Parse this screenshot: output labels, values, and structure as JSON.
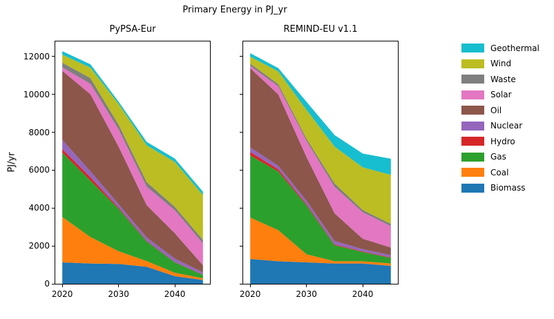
{
  "title": "Primary Energy in PJ_yr",
  "ylabel": "PJ/yr",
  "legend": {
    "position": "right",
    "items": [
      {
        "label": "Geothermal",
        "color": "#17becf"
      },
      {
        "label": "Wind",
        "color": "#bcbd22"
      },
      {
        "label": "Waste",
        "color": "#7f7f7f"
      },
      {
        "label": "Solar",
        "color": "#e377c2"
      },
      {
        "label": "Oil",
        "color": "#8c564b"
      },
      {
        "label": "Nuclear",
        "color": "#9467bd"
      },
      {
        "label": "Hydro",
        "color": "#d62728"
      },
      {
        "label": "Gas",
        "color": "#2ca02c"
      },
      {
        "label": "Coal",
        "color": "#ff7f0e"
      },
      {
        "label": "Biomass",
        "color": "#1f77b4"
      }
    ]
  },
  "chart_data": [
    {
      "type": "area",
      "title": "PyPSA-Eur",
      "stacked": true,
      "x": [
        2020,
        2025,
        2030,
        2035,
        2040,
        2045
      ],
      "xlim": [
        2018.75,
        2046.25
      ],
      "ylim": [
        0,
        12802
      ],
      "xticks": [
        2020,
        2030,
        2040
      ],
      "yticks": [
        0,
        2000,
        4000,
        6000,
        8000,
        10000,
        12000
      ],
      "show_ytick_labels": true,
      "grid": false,
      "series": [
        {
          "name": "Biomass",
          "color": "#1f77b4",
          "values": [
            1130,
            1070,
            1050,
            900,
            400,
            200
          ]
        },
        {
          "name": "Coal",
          "color": "#ff7f0e",
          "values": [
            2400,
            1400,
            670,
            300,
            180,
            90
          ]
        },
        {
          "name": "Gas",
          "color": "#2ca02c",
          "values": [
            3400,
            2980,
            2250,
            1040,
            550,
            180
          ]
        },
        {
          "name": "Hydro",
          "color": "#d62728",
          "values": [
            180,
            180,
            60,
            30,
            20,
            15
          ]
        },
        {
          "name": "Nuclear",
          "color": "#9467bd",
          "values": [
            490,
            310,
            180,
            180,
            180,
            120
          ]
        },
        {
          "name": "Oil",
          "color": "#8c564b",
          "values": [
            3650,
            4070,
            3040,
            1700,
            1340,
            370
          ]
        },
        {
          "name": "Solar",
          "color": "#e377c2",
          "values": [
            180,
            550,
            910,
            975,
            1215,
            1160
          ]
        },
        {
          "name": "Waste",
          "color": "#7f7f7f",
          "values": [
            245,
            305,
            245,
            245,
            180,
            180
          ]
        },
        {
          "name": "Wind",
          "color": "#bcbd22",
          "values": [
            430,
            550,
            1095,
            1945,
            2370,
            2370
          ]
        },
        {
          "name": "Geothermal",
          "color": "#17becf",
          "values": [
            180,
            180,
            125,
            180,
            180,
            180
          ]
        }
      ]
    },
    {
      "type": "area",
      "title": "REMIND-EU v1.1",
      "stacked": true,
      "x": [
        2020,
        2025,
        2030,
        2035,
        2040,
        2045
      ],
      "xlim": [
        2018.75,
        2046.25
      ],
      "ylim": [
        0,
        12802
      ],
      "xticks": [
        2020,
        2030,
        2040
      ],
      "yticks": [
        0,
        2000,
        4000,
        6000,
        8000,
        10000,
        12000
      ],
      "show_ytick_labels": false,
      "grid": false,
      "series": [
        {
          "name": "Biomass",
          "color": "#1f77b4",
          "values": [
            1310,
            1190,
            1130,
            1070,
            1070,
            950
          ]
        },
        {
          "name": "Coal",
          "color": "#ff7f0e",
          "values": [
            2190,
            1640,
            430,
            120,
            120,
            120
          ]
        },
        {
          "name": "Gas",
          "color": "#2ca02c",
          "values": [
            3280,
            3100,
            2590,
            850,
            490,
            300
          ]
        },
        {
          "name": "Hydro",
          "color": "#d62728",
          "values": [
            180,
            120,
            60,
            40,
            30,
            25
          ]
        },
        {
          "name": "Nuclear",
          "color": "#9467bd",
          "values": [
            245,
            180,
            180,
            180,
            120,
            120
          ]
        },
        {
          "name": "Oil",
          "color": "#8c564b",
          "values": [
            4190,
            3770,
            2310,
            1460,
            550,
            400
          ]
        },
        {
          "name": "Solar",
          "color": "#e377c2",
          "values": [
            120,
            425,
            850,
            1400,
            1400,
            1130
          ]
        },
        {
          "name": "Waste",
          "color": "#7f7f7f",
          "values": [
            120,
            120,
            120,
            180,
            120,
            120
          ]
        },
        {
          "name": "Wind",
          "color": "#bcbd22",
          "values": [
            365,
            670,
            1520,
            1945,
            2250,
            2590
          ]
        },
        {
          "name": "Geothermal",
          "color": "#17becf",
          "values": [
            180,
            180,
            425,
            610,
            730,
            850
          ]
        }
      ]
    }
  ]
}
